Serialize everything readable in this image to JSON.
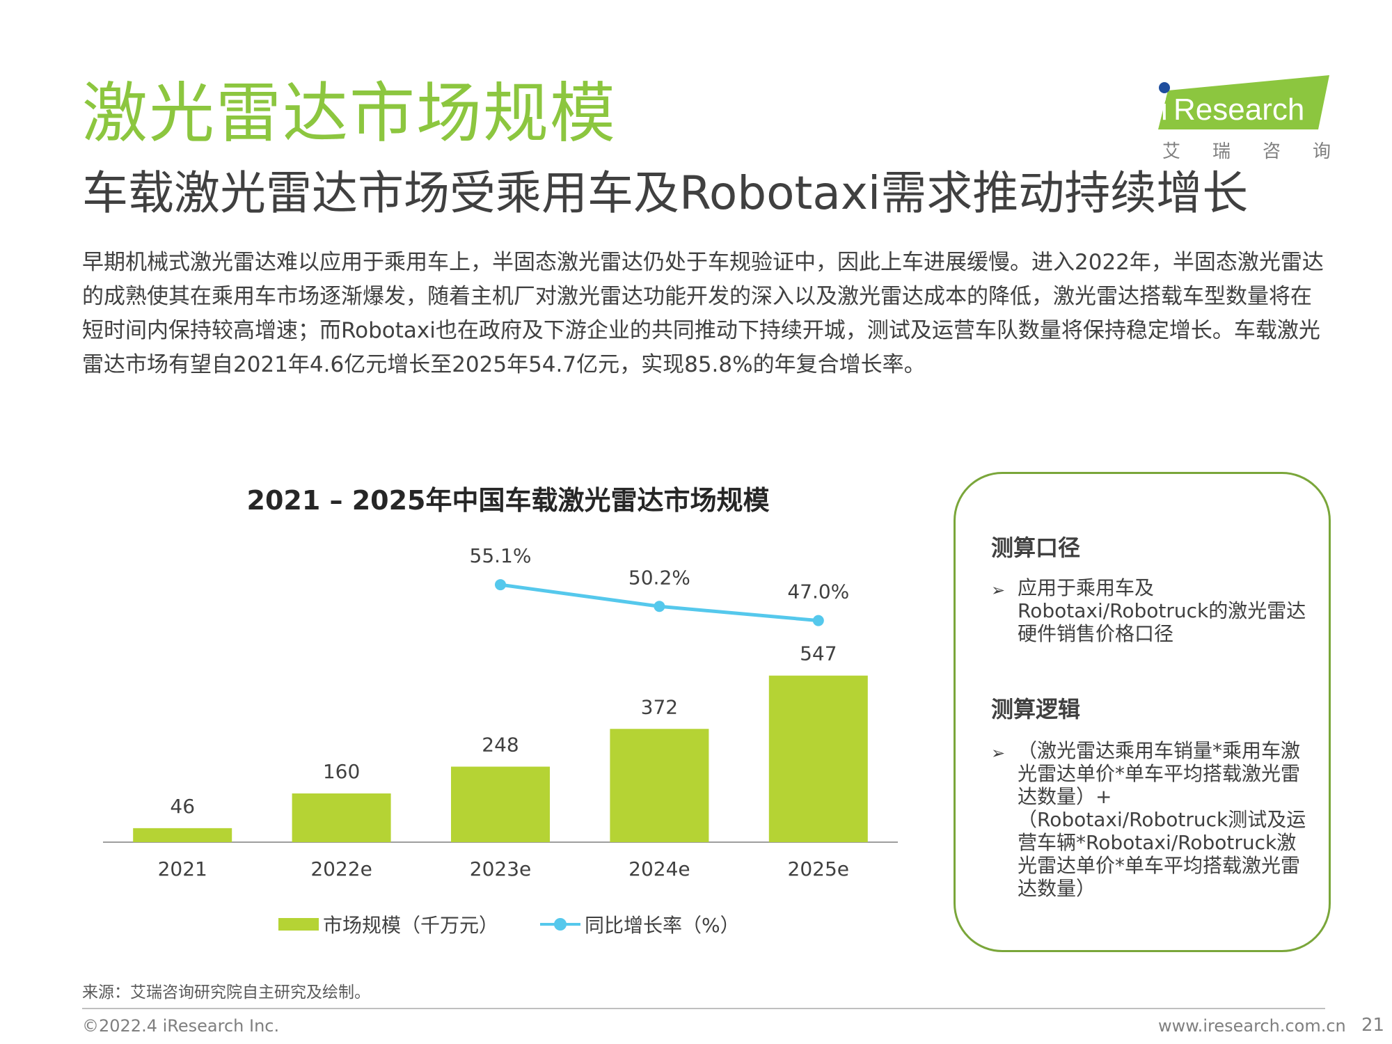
{
  "header": {
    "title": "激光雷达市场规模",
    "subtitle": "车载激光雷达市场受乘用车及Robotaxi需求推动持续增长"
  },
  "logo": {
    "brand_i": "i",
    "brand_rest": "Research",
    "cn_chars": [
      "艾",
      "瑞",
      "咨",
      "询"
    ],
    "accent_color": "#8cc63f",
    "dot_color": "#1f4e9e"
  },
  "body_text": "早期机械式激光雷达难以应用于乘用车上，半固态激光雷达仍处于车规验证中，因此上车进展缓慢。进入2022年，半固态激光雷达的成熟使其在乘用车市场逐渐爆发，随着主机厂对激光雷达功能开发的深入以及激光雷达成本的降低，激光雷达搭载车型数量将在短时间内保持较高增速；而Robotaxi也在政府及下游企业的共同推动下持续开城，测试及运营车队数量将保持稳定增长。车载激光雷达市场有望自2021年4.6亿元增长至2025年54.7亿元，实现85.8%的年复合增长率。",
  "chart_data": {
    "type": "bar",
    "title": "2021 – 2025年中国车载激光雷达市场规模",
    "categories": [
      "2021",
      "2022e",
      "2023e",
      "2024e",
      "2025e"
    ],
    "series": [
      {
        "name": "市场规模（千万元）",
        "type": "bar",
        "values": [
          46,
          160,
          248,
          372,
          547
        ],
        "labels": [
          "46",
          "160",
          "248",
          "372",
          "547"
        ],
        "color": "#b5d334"
      },
      {
        "name": "同比增长率（%）",
        "type": "line",
        "values": [
          null,
          null,
          55.1,
          50.2,
          47.0
        ],
        "labels": [
          "",
          "",
          "55.1%",
          "50.2%",
          "47.0%"
        ],
        "color": "#55c8ec"
      }
    ],
    "legend_position": "bottom",
    "grid": false
  },
  "method_box": {
    "heading1": "测算口径",
    "item1_lines": [
      "应用于乘用车及",
      "Robotaxi/Robotruck的激光雷达",
      "硬件销售价格口径"
    ],
    "heading2": "测算逻辑",
    "item2_lines": [
      "（激光雷达乘用车销量*乘用车激",
      "光雷达单价*单车平均搭载激光雷",
      "达数量）+",
      "（Robotaxi/Robotruck测试及运",
      "营车辆*Robotaxi/Robotruck激",
      "光雷达单价*单车平均搭载激光雷",
      "达数量）"
    ],
    "arrow_glyph": "➢",
    "border_color": "#7aa63a"
  },
  "footer": {
    "source": "来源：艾瑞咨询研究院自主研究及绘制。",
    "copyright": "©2022.4 iResearch Inc.",
    "website": "www.iresearch.com.cn",
    "page": "21"
  }
}
